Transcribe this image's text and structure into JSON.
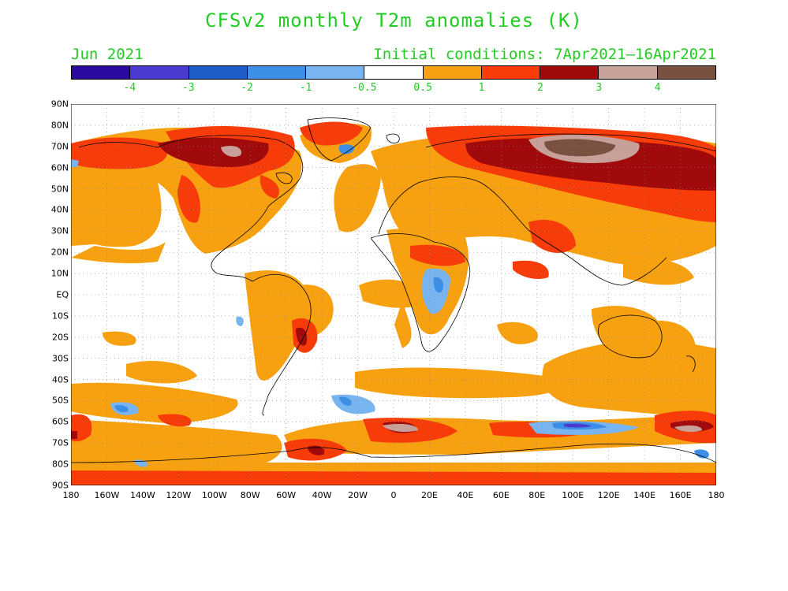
{
  "title": "CFSv2 monthly T2m anomalies (K)",
  "subtitle_left": "Jun 2021",
  "subtitle_right": "Initial conditions: 7Apr2021—16Apr2021",
  "colorbar": {
    "colors": [
      "#2a0aa0",
      "#4a3ad0",
      "#1e5cc8",
      "#3c8ee6",
      "#78b4f0",
      "#ffffff",
      "#f7a010",
      "#f73c0a",
      "#a00a0a",
      "#c8a09a",
      "#7a5040"
    ],
    "labels": [
      "-4",
      "-3",
      "-2",
      "-1",
      "-0.5",
      "0.5",
      "1",
      "2",
      "3",
      "4"
    ]
  },
  "map": {
    "lat_labels": [
      "90N",
      "80N",
      "70N",
      "60N",
      "50N",
      "40N",
      "30N",
      "20N",
      "10N",
      "EQ",
      "10S",
      "20S",
      "30S",
      "40S",
      "50S",
      "60S",
      "70S",
      "80S",
      "90S"
    ],
    "lon_labels": [
      "180",
      "160W",
      "140W",
      "120W",
      "100W",
      "80W",
      "60W",
      "40W",
      "20W",
      "0",
      "20E",
      "40E",
      "60E",
      "80E",
      "100E",
      "120E",
      "140E",
      "160E",
      "180"
    ]
  }
}
